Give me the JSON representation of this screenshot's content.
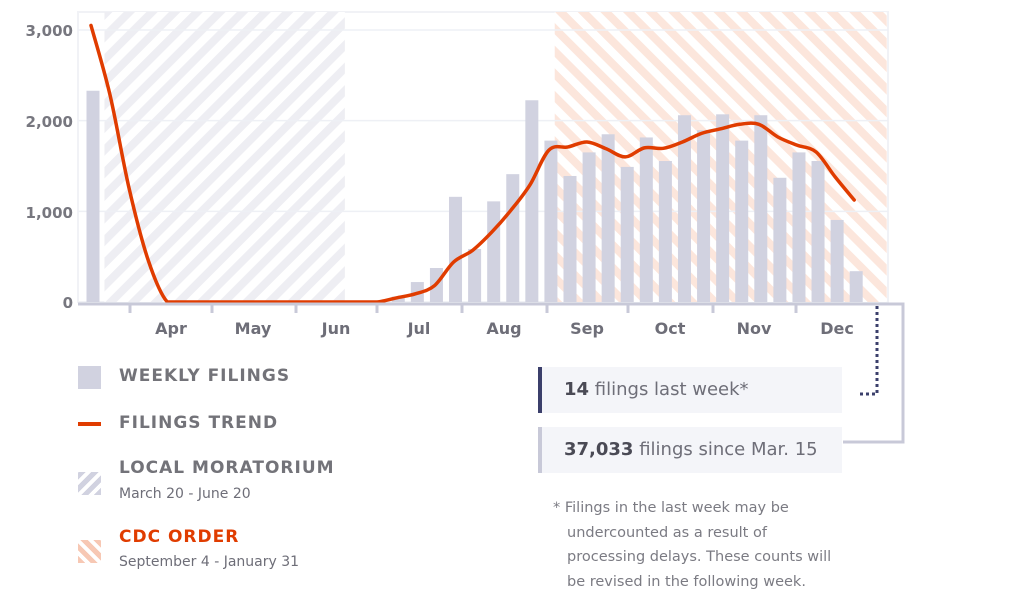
{
  "chart_data": {
    "type": "bar",
    "title": "",
    "xlabel": "",
    "ylabel": "",
    "ylim": [
      0,
      3000
    ],
    "yticks": [
      "0",
      "1,000",
      "2,000",
      "3,000"
    ],
    "ytick_values": [
      0,
      1000,
      2000,
      3000
    ],
    "xtick_labels": [
      "Apr",
      "May",
      "Jun",
      "Jul",
      "Aug",
      "Sep",
      "Oct",
      "Nov",
      "Dec"
    ],
    "grid": true,
    "series": [
      {
        "name": "Weekly filings",
        "type": "bar",
        "values": [
          2330,
          0,
          0,
          0,
          0,
          0,
          0,
          0,
          0,
          0,
          0,
          0,
          0,
          0,
          0,
          0,
          60,
          220,
          375,
          1160,
          585,
          1110,
          1410,
          2225,
          1780,
          1390,
          1650,
          1850,
          1490,
          1815,
          1555,
          2060,
          1895,
          2070,
          1780,
          2060,
          1370,
          1650,
          1555,
          905,
          340
        ]
      },
      {
        "name": "Filings trend",
        "type": "line",
        "values": [
          3050,
          2280,
          1250,
          460,
          0,
          0,
          0,
          0,
          0,
          0,
          0,
          0,
          0,
          0,
          0,
          0,
          45,
          90,
          180,
          440,
          570,
          770,
          1010,
          1290,
          1675,
          1710,
          1765,
          1690,
          1600,
          1700,
          1695,
          1765,
          1860,
          1910,
          1960,
          1960,
          1820,
          1730,
          1655,
          1380,
          1125
        ]
      }
    ],
    "shaded_ranges": [
      {
        "name": "Local moratorium",
        "start_week": 0.6,
        "end_week": 13.2
      },
      {
        "name": "CDC order",
        "start_week": 24.2,
        "end_week": 41.6
      }
    ]
  },
  "legend": [
    {
      "title": "WEEKLY FILINGS",
      "subtitle": ""
    },
    {
      "title": "FILINGS TREND",
      "subtitle": ""
    },
    {
      "title": "LOCAL MORATORIUM",
      "subtitle": "March 20 - June 20"
    },
    {
      "title": "CDC ORDER",
      "subtitle": "September 4 - January 31"
    }
  ],
  "stats": {
    "last_week_value": "14",
    "last_week_label": " filings last week*",
    "total_value": "37,033",
    "total_label": " filings since Mar. 15"
  },
  "footnote": [
    "* Filings in the last week may be",
    "undercounted as a result of",
    "processing delays. These counts will",
    "be revised in the following week."
  ],
  "colors": {
    "bar": "#d1d2e0",
    "trend": "#e03c00",
    "moratorium": "#e6e7ef",
    "cdc": "#fbe0d4",
    "cdc_title": "#e03c00",
    "navy": "#3b3f6b",
    "frame": "#c8c9d8"
  }
}
